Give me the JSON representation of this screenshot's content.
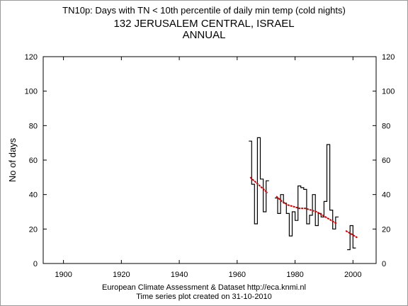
{
  "title_line1": "TN10p: Days with TN < 10th percentile of daily min temp (cold nights)",
  "title_line2": "132 JERUSALEM CENTRAL, ISRAEL",
  "title_line3": "ANNUAL",
  "footer_line1": "European Climate Assessment & Dataset  http://eca.knmi.nl",
  "footer_line2": "Time series plot created on 31-10-2010",
  "chart_data": {
    "type": "line",
    "ylabel": "No of days",
    "xlabel": "",
    "xlim": [
      1893,
      2008
    ],
    "ylim": [
      0,
      120
    ],
    "x_ticks": [
      1900,
      1920,
      1940,
      1960,
      1980,
      2000
    ],
    "y_ticks": [
      0,
      20,
      40,
      60,
      80,
      100,
      120
    ],
    "grid": false,
    "legend": "none",
    "series": [
      {
        "style": "step",
        "color": "#000000",
        "points": [
          [
            1964,
            71
          ],
          [
            1965,
            46
          ],
          [
            1966,
            23
          ],
          [
            1967,
            73
          ],
          [
            1968,
            49
          ],
          [
            1969,
            30
          ],
          [
            1970,
            48
          ],
          [
            1971,
            null
          ],
          [
            1972,
            null
          ],
          [
            1973,
            38
          ],
          [
            1974,
            29
          ],
          [
            1975,
            40
          ],
          [
            1976,
            35
          ],
          [
            1977,
            29
          ],
          [
            1978,
            16
          ],
          [
            1979,
            30
          ],
          [
            1980,
            25
          ],
          [
            1981,
            45
          ],
          [
            1982,
            44
          ],
          [
            1983,
            43
          ],
          [
            1984,
            23
          ],
          [
            1985,
            28
          ],
          [
            1986,
            40
          ],
          [
            1987,
            22
          ],
          [
            1988,
            29
          ],
          [
            1989,
            27
          ],
          [
            1990,
            36
          ],
          [
            1991,
            69
          ],
          [
            1992,
            31
          ],
          [
            1993,
            20
          ],
          [
            1994,
            27
          ],
          [
            1995,
            null
          ],
          [
            1996,
            null
          ],
          [
            1997,
            null
          ],
          [
            1998,
            8
          ],
          [
            1999,
            22
          ],
          [
            2000,
            9
          ]
        ]
      },
      {
        "style": "smooth-trend",
        "color": "#cc0000",
        "points": [
          [
            1964,
            50
          ],
          [
            1966,
            47
          ],
          [
            1968,
            44
          ],
          [
            1970,
            41
          ],
          [
            1972,
            null
          ],
          [
            1973,
            39
          ],
          [
            1975,
            36
          ],
          [
            1977,
            34
          ],
          [
            1979,
            33
          ],
          [
            1981,
            32
          ],
          [
            1983,
            32
          ],
          [
            1985,
            31
          ],
          [
            1987,
            30
          ],
          [
            1989,
            28
          ],
          [
            1991,
            26
          ],
          [
            1993,
            24
          ],
          [
            1994,
            23
          ],
          [
            1995,
            null
          ],
          [
            1997,
            19
          ],
          [
            1999,
            17
          ],
          [
            2001,
            15
          ]
        ]
      }
    ]
  }
}
